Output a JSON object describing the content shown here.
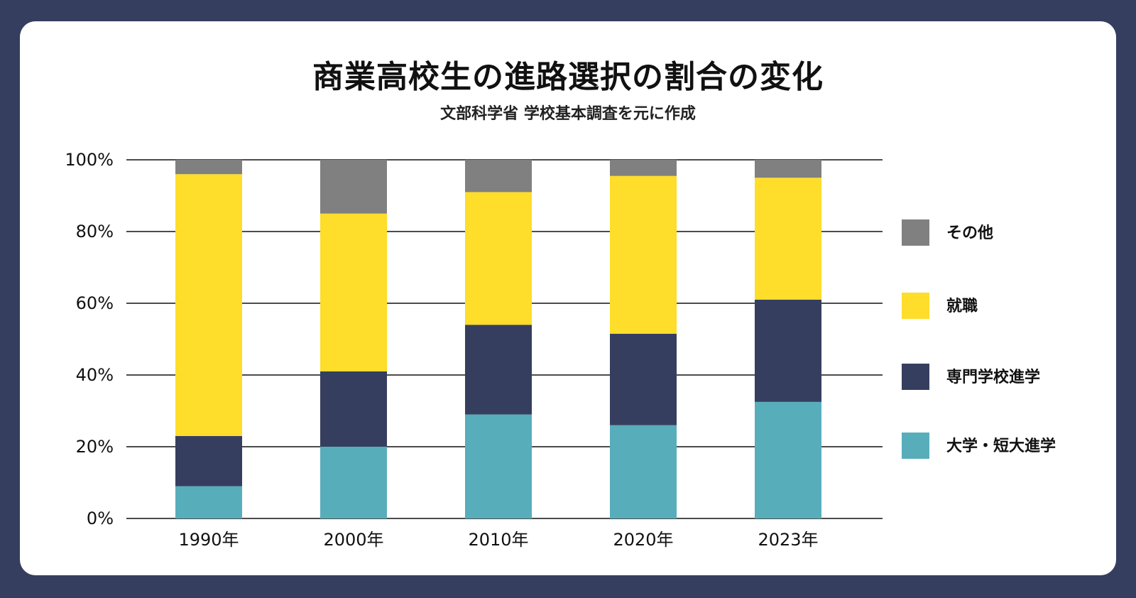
{
  "chart_data": {
    "type": "bar",
    "stacked": true,
    "title": "商業高校生の進路選択の割合の変化",
    "subtitle": "文部科学省 学校基本調査を元に作成",
    "categories": [
      "1990年",
      "2000年",
      "2010年",
      "2020年",
      "2023年"
    ],
    "yticks": [
      "0%",
      "20%",
      "40%",
      "60%",
      "80%",
      "100%"
    ],
    "ylim": [
      0,
      100
    ],
    "grid": true,
    "legend_position": "right",
    "series": [
      {
        "name": "大学・短大進学",
        "color": "#58adbb",
        "values": [
          9,
          20,
          29,
          26,
          32.5
        ]
      },
      {
        "name": "専門学校進学",
        "color": "#363e5f",
        "values": [
          14,
          21,
          25,
          25.5,
          28.5
        ]
      },
      {
        "name": "就職",
        "color": "#fedd2b",
        "values": [
          73,
          44,
          37,
          44,
          34
        ]
      },
      {
        "name": "その他",
        "color": "#808080",
        "values": [
          4,
          15,
          9,
          4.5,
          5
        ]
      }
    ],
    "legend_order": [
      "その他",
      "就職",
      "専門学校進学",
      "大学・短大進学"
    ]
  }
}
